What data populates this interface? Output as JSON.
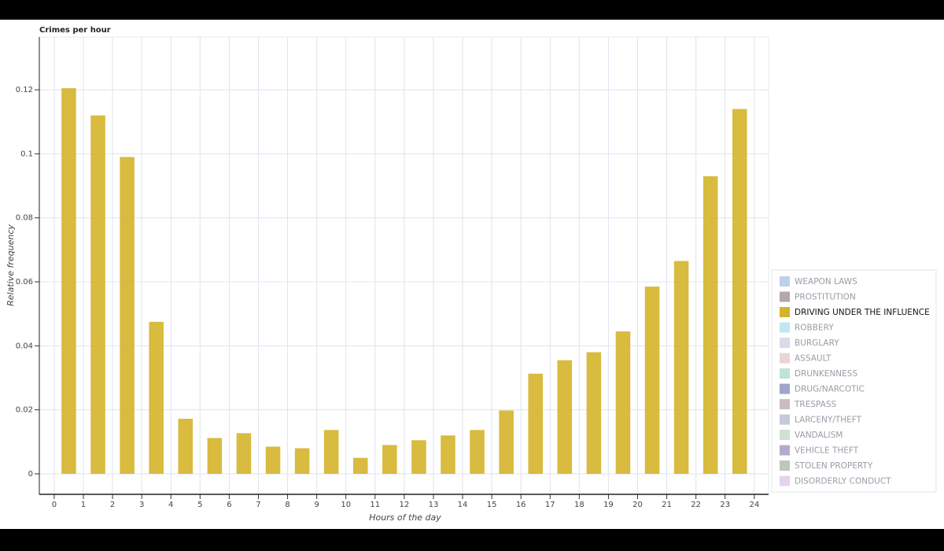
{
  "chart_data": {
    "type": "bar",
    "title": "Crimes per hour",
    "xlabel": "Hours of the day",
    "ylabel": "Relative frequency",
    "x": [
      0.5,
      1.5,
      2.5,
      3.5,
      4.5,
      5.5,
      6.5,
      7.5,
      8.5,
      9.5,
      10.5,
      11.5,
      12.5,
      13.5,
      14.5,
      15.5,
      16.5,
      17.5,
      18.5,
      19.5,
      20.5,
      21.5,
      22.5,
      23.5
    ],
    "series": [
      {
        "name": "WEAPON LAWS",
        "color": "#a9c1e2",
        "muted": true
      },
      {
        "name": "PROSTITUTION",
        "color": "#9c8791",
        "muted": true
      },
      {
        "name": "DRIVING UNDER THE INFLUENCE",
        "color": "#d4b42a",
        "muted": false,
        "values": [
          0.1205,
          0.112,
          0.099,
          0.0475,
          0.0172,
          0.0112,
          0.0127,
          0.0085,
          0.008,
          0.0137,
          0.005,
          0.009,
          0.0105,
          0.012,
          0.0137,
          0.0198,
          0.0313,
          0.0355,
          0.038,
          0.0445,
          0.0585,
          0.0665,
          0.093,
          0.114
        ]
      },
      {
        "name": "ROBBERY",
        "color": "#a9e0ea",
        "muted": true
      },
      {
        "name": "BURGLARY",
        "color": "#c9d0df",
        "muted": true
      },
      {
        "name": "ASSAULT",
        "color": "#e3c5c9",
        "muted": true
      },
      {
        "name": "DRUNKENNESS",
        "color": "#a7dcc8",
        "muted": true
      },
      {
        "name": "DRUG/NARCOTIC",
        "color": "#7f86b8",
        "muted": true
      },
      {
        "name": "TRESPASS",
        "color": "#b8a7ab",
        "muted": true
      },
      {
        "name": "LARCENY/THEFT",
        "color": "#b3b7c9",
        "muted": true
      },
      {
        "name": "VANDALISM",
        "color": "#c3d4c9",
        "muted": true
      },
      {
        "name": "VEHICLE THEFT",
        "color": "#9d8dbb",
        "muted": true
      },
      {
        "name": "STOLEN PROPERTY",
        "color": "#a9b1a9",
        "muted": true
      },
      {
        "name": "DISORDERLY CONDUCT",
        "color": "#d9c5e5",
        "muted": true
      }
    ],
    "bar_width": 0.5,
    "xlim": [
      -0.51,
      24.49
    ],
    "xticks": [
      0,
      1,
      2,
      3,
      4,
      5,
      6,
      7,
      8,
      9,
      10,
      11,
      12,
      13,
      14,
      15,
      16,
      17,
      18,
      19,
      20,
      21,
      22,
      23,
      24
    ],
    "ylim": [
      -0.0064,
      0.1365
    ],
    "yticks": [
      0,
      0.02,
      0.04,
      0.06,
      0.08,
      0.1,
      0.12
    ],
    "grid": true,
    "legend": "right"
  }
}
